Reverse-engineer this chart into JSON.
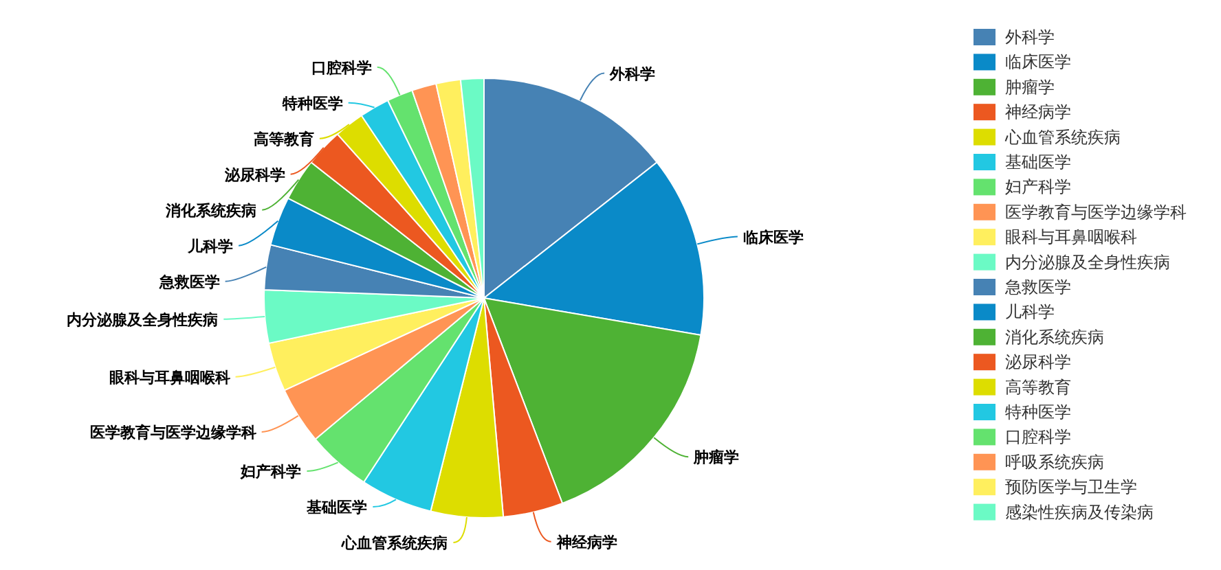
{
  "chart_data": {
    "type": "pie",
    "legend": "right",
    "categories": [
      "外科学",
      "临床医学",
      "肿瘤学",
      "神经病学",
      "心血管系统疾病",
      "基础医学",
      "妇产科学",
      "医学教育与医学边缘学科",
      "眼科与耳鼻咽喉科",
      "内分泌腺及全身性疾病",
      "急救医学",
      "儿科学",
      "消化系统疾病",
      "泌尿科学",
      "高等教育",
      "特种医学",
      "口腔科学",
      "呼吸系统疾病",
      "预防医学与卫生学",
      "感染性疾病及传染病"
    ],
    "values": [
      14.4,
      13.3,
      16.5,
      4.4,
      5.3,
      5.3,
      4.7,
      4.2,
      3.6,
      3.9,
      3.3,
      3.6,
      3.1,
      2.8,
      2.2,
      2.2,
      1.9,
      1.8,
      1.8,
      1.7
    ],
    "colors": [
      "#4682b4",
      "#0a8ac8",
      "#4eb234",
      "#ec5820",
      "#dddd00",
      "#22c8e2",
      "#64e26e",
      "#ff9454",
      "#ffef5e",
      "#6bfac5",
      "#4682b4",
      "#0a8ac8",
      "#4eb234",
      "#ec5820",
      "#dddd00",
      "#22c8e2",
      "#64e26e",
      "#ff9454",
      "#ffef5e",
      "#6bfac5"
    ]
  }
}
